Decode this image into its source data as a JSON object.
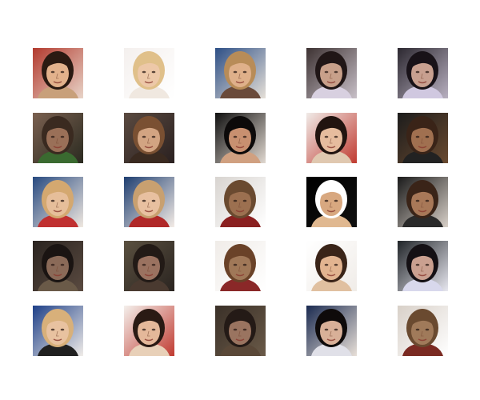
{
  "grid": {
    "rows": 5,
    "cols": 5,
    "tiles": [
      {
        "bg": "#b23a2e",
        "bg2": "#e8d4c8",
        "skin": "#e2b28c",
        "hair": "#2a1a12",
        "shirt": "#c8a07a"
      },
      {
        "bg": "#f4f0ee",
        "bg2": "#ffffff",
        "skin": "#edc8a8",
        "hair": "#e0c08a",
        "shirt": "#f0e8e0"
      },
      {
        "bg": "#2d4f86",
        "bg2": "#e6e0d8",
        "skin": "#dfb08a",
        "hair": "#b88c58",
        "shirt": "#6a4a3a"
      },
      {
        "bg": "#3d3232",
        "bg2": "#c8c0c8",
        "skin": "#c8a08a",
        "hair": "#201616",
        "shirt": "#d8d0e0"
      },
      {
        "bg": "#2c2830",
        "bg2": "#b8b0c0",
        "skin": "#c8a090",
        "hair": "#181218",
        "shirt": "#d0c8e0"
      },
      {
        "bg": "#7a6050",
        "bg2": "#2a2a20",
        "skin": "#9a7058",
        "hair": "#3a2a20",
        "shirt": "#3a6a30"
      },
      {
        "bg": "#5a4a40",
        "bg2": "#2a2020",
        "skin": "#d2a482",
        "hair": "#7a5032",
        "shirt": "#3a2a20"
      },
      {
        "bg": "#101010",
        "bg2": "#e0d8d0",
        "skin": "#c89070",
        "hair": "#0c0a0a",
        "shirt": "#d0a080"
      },
      {
        "bg": "#f0ebe8",
        "bg2": "#c03a30",
        "skin": "#e6bc9e",
        "hair": "#221410",
        "shirt": "#e0c8b0"
      },
      {
        "bg": "#1c1c1c",
        "bg2": "#6a4a30",
        "skin": "#a07050",
        "hair": "#3a2418",
        "shirt": "#222222"
      },
      {
        "bg": "#284a80",
        "bg2": "#f0e8e0",
        "skin": "#e6be9a",
        "hair": "#d4a870",
        "shirt": "#c03030"
      },
      {
        "bg": "#1e3e70",
        "bg2": "#f4ece6",
        "skin": "#e8c0a0",
        "hair": "#c8a070",
        "shirt": "#b02828"
      },
      {
        "bg": "#d8d4d0",
        "bg2": "#ffffff",
        "skin": "#9c7050",
        "hair": "#6a4a30",
        "shirt": "#8a2020"
      },
      {
        "bg": "#000000",
        "bg2": "#101010",
        "skin": "#d8a880",
        "hair": "#ffffff",
        "shirt": "#e0b890"
      },
      {
        "bg": "#1a1a1a",
        "bg2": "#d8d0c8",
        "skin": "#a87858",
        "hair": "#3a2418",
        "shirt": "#2a2a2a"
      },
      {
        "bg": "#2a2420",
        "bg2": "#5a4a40",
        "skin": "#8a6a58",
        "hair": "#1a1412",
        "shirt": "#6a5a48"
      },
      {
        "bg": "#5a5040",
        "bg2": "#2a2420",
        "skin": "#9a7260",
        "hair": "#221a16",
        "shirt": "#4a3a30"
      },
      {
        "bg": "#f0ece8",
        "bg2": "#ffffff",
        "skin": "#a07858",
        "hair": "#6a4228",
        "shirt": "#8a2828"
      },
      {
        "bg": "#ffffff",
        "bg2": "#f0ece8",
        "skin": "#e2b490",
        "hair": "#3a2418",
        "shirt": "#e0c0a0"
      },
      {
        "bg": "#202428",
        "bg2": "#e8e8f0",
        "skin": "#caa090",
        "hair": "#141014",
        "shirt": "#d8d8ec"
      },
      {
        "bg": "#1e4088",
        "bg2": "#f0ece8",
        "skin": "#e8c2a0",
        "hair": "#d8b07a",
        "shirt": "#202020"
      },
      {
        "bg": "#f4f0ec",
        "bg2": "#c03a30",
        "skin": "#e4b89a",
        "hair": "#2a1a14",
        "shirt": "#e8d0b8"
      },
      {
        "bg": "#3a3028",
        "bg2": "#6a5a48",
        "skin": "#9a7460",
        "hair": "#241a16",
        "shirt": "#5a4838"
      },
      {
        "bg": "#1a2a50",
        "bg2": "#e8e0d8",
        "skin": "#d8b098",
        "hair": "#0e0a0a",
        "shirt": "#e0e0e8"
      },
      {
        "bg": "#d8d0c8",
        "bg2": "#ffffff",
        "skin": "#a07a5a",
        "hair": "#6a4a30",
        "shirt": "#7a2a22"
      }
    ]
  }
}
